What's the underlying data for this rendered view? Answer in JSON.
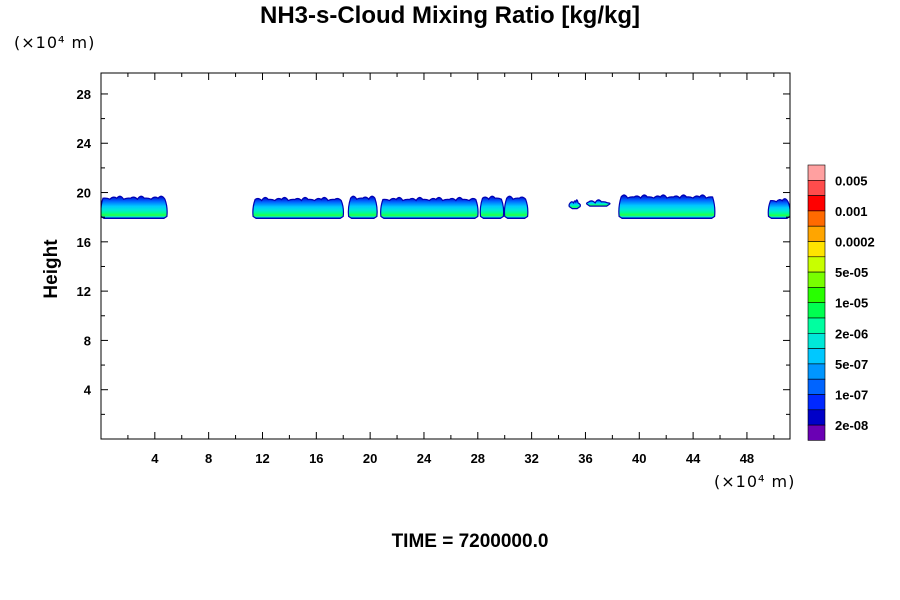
{
  "chart_data": {
    "type": "contour",
    "title": "NH3-s-Cloud Mixing Ratio [kg/kg]",
    "ylabel": "Height",
    "x_unit": "(×10⁴ m)",
    "y_unit": "(×10⁴ m)",
    "xlim": [
      0,
      51.2
    ],
    "ylim": [
      0,
      29.7
    ],
    "x_ticks": [
      "4",
      "8",
      "12",
      "16",
      "20",
      "24",
      "28",
      "32",
      "36",
      "40",
      "44",
      "48"
    ],
    "x_tick_values": [
      4,
      8,
      12,
      16,
      20,
      24,
      28,
      32,
      36,
      40,
      44,
      48
    ],
    "y_ticks": [
      "4",
      "8",
      "12",
      "16",
      "20",
      "24",
      "28"
    ],
    "y_tick_values": [
      4,
      8,
      12,
      16,
      20,
      24,
      28
    ],
    "legend": {
      "labels": [
        "0.005",
        "0.001",
        "0.0002",
        "5e-05",
        "1e-05",
        "2e-06",
        "5e-07",
        "1e-07",
        "2e-08"
      ],
      "colors": [
        "#ffa0a0",
        "#ff4c4c",
        "#ff0000",
        "#ff6a00",
        "#ffa500",
        "#ffe400",
        "#c8ff00",
        "#78ff00",
        "#28ff00",
        "#00ff50",
        "#00ffa0",
        "#00e8d8",
        "#00c8ff",
        "#0096ff",
        "#0064ff",
        "#0028ff",
        "#0000c8",
        "#6a00b4"
      ]
    },
    "cloud_segments": [
      {
        "x0": 0.0,
        "x1": 4.9,
        "z0": 17.9,
        "z1": 19.7
      },
      {
        "x0": 11.3,
        "x1": 18.0,
        "z0": 17.9,
        "z1": 19.6
      },
      {
        "x0": 18.4,
        "x1": 20.5,
        "z0": 17.9,
        "z1": 19.7
      },
      {
        "x0": 20.8,
        "x1": 28.0,
        "z0": 17.9,
        "z1": 19.6
      },
      {
        "x0": 28.2,
        "x1": 29.9,
        "z0": 17.9,
        "z1": 19.7
      },
      {
        "x0": 30.0,
        "x1": 31.7,
        "z0": 17.9,
        "z1": 19.7
      },
      {
        "x0": 34.8,
        "x1": 35.6,
        "z0": 18.7,
        "z1": 19.4
      },
      {
        "x0": 36.1,
        "x1": 37.8,
        "z0": 18.9,
        "z1": 19.4
      },
      {
        "x0": 38.5,
        "x1": 45.6,
        "z0": 17.9,
        "z1": 19.8
      },
      {
        "x0": 49.6,
        "x1": 51.2,
        "z0": 17.9,
        "z1": 19.5
      }
    ]
  },
  "time_label": "TIME = 7200000.0"
}
